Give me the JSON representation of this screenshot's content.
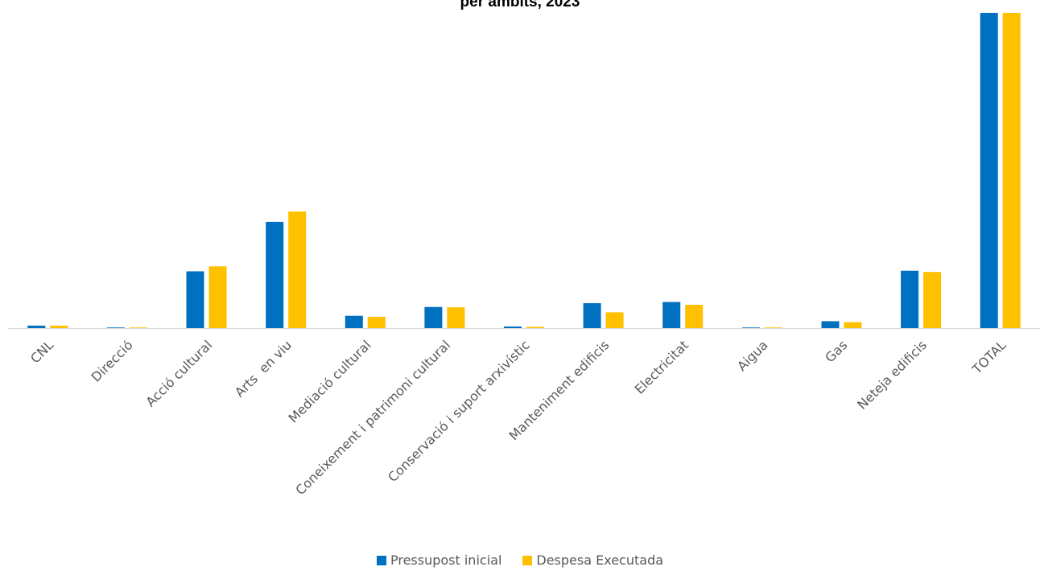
{
  "chart_data": {
    "type": "bar",
    "title": "per ambits, 2023",
    "xlabel": "",
    "ylabel": "",
    "categories": [
      "CNL",
      "Direcció",
      "Acció cultural",
      "Arts  en viu",
      "Mediació cultural",
      "Coneixement i patrimoni cultural",
      "Conservació i suport arxivístic",
      "Manteniment edificis",
      "Electricitat",
      "Aigua",
      "Gas",
      "Neteja edificis",
      "TOTAL"
    ],
    "series": [
      {
        "name": "Pressupost inicial",
        "color": "#0070C0",
        "values": [
          0.8,
          0.1,
          18.0,
          33.7,
          3.9,
          6.7,
          0.5,
          7.9,
          8.3,
          0.1,
          2.2,
          18.2,
          100.0
        ]
      },
      {
        "name": "Despesa Executada",
        "color": "#FFC000",
        "values": [
          0.8,
          0.1,
          19.6,
          37.0,
          3.6,
          6.6,
          0.4,
          5.0,
          7.4,
          0.1,
          1.9,
          17.8,
          100.0
        ]
      }
    ],
    "ylim": [
      0,
      100
    ],
    "grid": false,
    "legend": "bottom",
    "axis_color": "#D9D9D9"
  }
}
